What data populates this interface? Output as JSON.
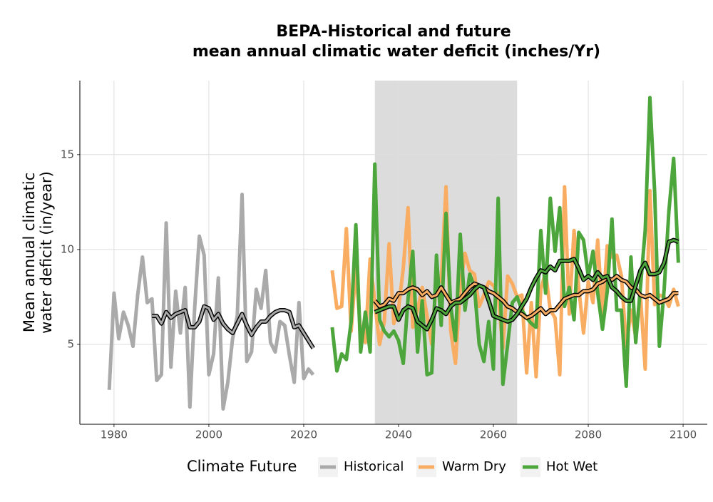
{
  "chart_data": {
    "type": "line",
    "title": [
      "BEPA-Historical and future",
      "mean annual climatic water deficit (inches/Yr)"
    ],
    "y_label": [
      "Mean annual climatic",
      "water deficit (in/year)"
    ],
    "legend_title": "Climate Future",
    "xlim": [
      1972.8,
      2105.1
    ],
    "ylim": [
      0.79,
      18.9
    ],
    "xticks": [
      1980,
      2000,
      2020,
      2040,
      2060,
      2080,
      2100
    ],
    "yticks": [
      5,
      10,
      15
    ],
    "grid": true,
    "highlight_x": [
      2035,
      2065
    ],
    "highlight_color": "#dcdcdc",
    "smooth_outline_color": "#000000",
    "series": [
      {
        "name": "Historical",
        "color": "#aaaaaa",
        "x": [
          1979,
          1980,
          1981,
          1982,
          1983,
          1984,
          1985,
          1986,
          1987,
          1988,
          1989,
          1990,
          1991,
          1992,
          1993,
          1994,
          1995,
          1996,
          1997,
          1998,
          1999,
          2000,
          2001,
          2002,
          2003,
          2004,
          2005,
          2006,
          2007,
          2008,
          2009,
          2010,
          2011,
          2012,
          2013,
          2014,
          2015,
          2016,
          2017,
          2018,
          2019,
          2020,
          2021,
          2022
        ],
        "values": [
          2.6,
          7.7,
          5.3,
          6.7,
          6.0,
          4.9,
          7.6,
          9.6,
          7.2,
          7.4,
          3.1,
          3.4,
          11.4,
          3.8,
          7.8,
          5.6,
          8.0,
          1.7,
          6.9,
          10.7,
          9.7,
          3.4,
          4.5,
          8.5,
          1.6,
          3.0,
          5.3,
          6.5,
          12.9,
          4.1,
          4.6,
          7.9,
          6.9,
          8.9,
          5.1,
          4.6,
          6.2,
          6.0,
          4.4,
          3.0,
          7.2,
          3.2,
          3.7,
          3.4
        ],
        "smooth": [
          null,
          null,
          null,
          null,
          null,
          null,
          null,
          null,
          null,
          6.5,
          6.5,
          6.1,
          6.7,
          6.4,
          6.6,
          6.7,
          6.8,
          5.9,
          5.9,
          6.2,
          7.0,
          6.9,
          6.3,
          6.6,
          6.1,
          5.8,
          5.6,
          6.1,
          6.6,
          6.0,
          5.5,
          5.9,
          6.2,
          6.2,
          6.5,
          6.7,
          6.8,
          6.8,
          6.7,
          5.9,
          6.0,
          5.6,
          5.2,
          4.8
        ]
      },
      {
        "name": "Warm Dry",
        "color": "#f9ad62",
        "x": [
          2026,
          2027,
          2028,
          2029,
          2030,
          2031,
          2032,
          2033,
          2034,
          2035,
          2036,
          2037,
          2038,
          2039,
          2040,
          2041,
          2042,
          2043,
          2044,
          2045,
          2046,
          2047,
          2048,
          2049,
          2050,
          2051,
          2052,
          2053,
          2054,
          2055,
          2056,
          2057,
          2058,
          2059,
          2060,
          2061,
          2062,
          2063,
          2064,
          2065,
          2066,
          2067,
          2068,
          2069,
          2070,
          2071,
          2072,
          2073,
          2074,
          2075,
          2076,
          2077,
          2078,
          2079,
          2080,
          2081,
          2082,
          2083,
          2084,
          2085,
          2086,
          2087,
          2088,
          2089,
          2090,
          2091,
          2092,
          2093,
          2094,
          2095,
          2096,
          2097,
          2098,
          2099
        ],
        "values": [
          8.9,
          6.9,
          7.0,
          11.1,
          5.7,
          9.0,
          5.6,
          5.1,
          9.5,
          7.2,
          5.0,
          6.2,
          10.3,
          6.1,
          6.9,
          9.0,
          12.2,
          5.9,
          6.8,
          8.0,
          6.5,
          5.0,
          8.5,
          8.3,
          13.3,
          5.7,
          4.0,
          8.0,
          9.8,
          8.9,
          8.7,
          7.0,
          7.6,
          8.3,
          8.1,
          7.6,
          4.8,
          8.6,
          8.2,
          7.5,
          7.6,
          3.5,
          7.2,
          3.3,
          7.9,
          8.8,
          6.8,
          6.4,
          3.4,
          13.3,
          6.6,
          11.0,
          8.0,
          5.6,
          8.3,
          7.2,
          10.5,
          6.6,
          10.2,
          9.6,
          9.7,
          8.6,
          4.9,
          6.8,
          5.4,
          7.6,
          3.7,
          13.1,
          7.1,
          7.6,
          7.5,
          7.0,
          7.9,
          7.0
        ],
        "smooth": [
          null,
          null,
          null,
          null,
          null,
          null,
          null,
          null,
          null,
          7.3,
          7.0,
          7.1,
          7.4,
          7.3,
          7.7,
          7.7,
          7.9,
          8.0,
          7.9,
          7.6,
          7.8,
          7.5,
          7.6,
          8.0,
          7.6,
          7.2,
          7.3,
          7.4,
          7.7,
          8.0,
          8.2,
          8.1,
          8.0,
          7.8,
          7.7,
          7.5,
          7.3,
          7.0,
          6.9,
          6.7,
          6.6,
          6.4,
          6.5,
          6.7,
          6.9,
          6.6,
          6.8,
          6.8,
          7.1,
          7.4,
          7.5,
          7.6,
          7.6,
          7.8,
          7.8,
          7.9,
          8.2,
          8.3,
          8.5,
          8.4,
          8.6,
          8.4,
          8.3,
          8.0,
          7.9,
          7.6,
          7.5,
          7.6,
          7.4,
          7.2,
          7.3,
          7.4,
          7.7,
          7.7
        ]
      },
      {
        "name": "Hot Wet",
        "color": "#4da63c",
        "x": [
          2026,
          2027,
          2028,
          2029,
          2030,
          2031,
          2032,
          2033,
          2034,
          2035,
          2036,
          2037,
          2038,
          2039,
          2040,
          2041,
          2042,
          2043,
          2044,
          2045,
          2046,
          2047,
          2048,
          2049,
          2050,
          2051,
          2052,
          2053,
          2054,
          2055,
          2056,
          2057,
          2058,
          2059,
          2060,
          2061,
          2062,
          2063,
          2064,
          2065,
          2066,
          2067,
          2068,
          2069,
          2070,
          2071,
          2072,
          2073,
          2074,
          2075,
          2076,
          2077,
          2078,
          2079,
          2080,
          2081,
          2082,
          2083,
          2084,
          2085,
          2086,
          2087,
          2088,
          2089,
          2090,
          2091,
          2092,
          2093,
          2094,
          2095,
          2096,
          2097,
          2098,
          2099
        ],
        "values": [
          5.9,
          3.6,
          4.5,
          4.2,
          6.2,
          11.3,
          4.6,
          6.7,
          4.6,
          14.5,
          6.3,
          5.7,
          5.4,
          5.7,
          5.2,
          4.0,
          7.4,
          9.9,
          4.6,
          7.3,
          3.4,
          3.5,
          9.7,
          6.0,
          11.9,
          7.0,
          5.2,
          10.8,
          6.8,
          8.7,
          8.0,
          5.0,
          4.1,
          6.2,
          3.7,
          12.7,
          2.9,
          5.0,
          7.2,
          7.5,
          6.8,
          6.4,
          6.1,
          5.9,
          11.0,
          7.7,
          12.7,
          9.9,
          12.2,
          7.0,
          8.0,
          6.3,
          10.9,
          10.5,
          8.6,
          9.9,
          7.7,
          5.8,
          7.8,
          11.6,
          6.8,
          6.8,
          2.8,
          9.6,
          5.1,
          8.0,
          11.0,
          18.0,
          13.0,
          4.9,
          7.9,
          12.0,
          14.8,
          9.3
        ],
        "smooth": [
          null,
          null,
          null,
          null,
          null,
          null,
          null,
          null,
          null,
          6.7,
          6.8,
          6.9,
          7.0,
          7.0,
          6.3,
          6.8,
          7.0,
          6.9,
          6.2,
          6.0,
          5.8,
          6.3,
          6.9,
          6.8,
          6.6,
          7.0,
          7.2,
          7.2,
          7.4,
          7.6,
          7.9,
          8.1,
          8.0,
          7.3,
          6.5,
          6.4,
          6.3,
          6.2,
          6.3,
          6.6,
          7.0,
          7.4,
          8.0,
          8.5,
          8.9,
          8.8,
          9.1,
          8.9,
          9.4,
          9.4,
          9.4,
          9.5,
          9.0,
          8.4,
          8.6,
          8.4,
          8.8,
          8.5,
          8.6,
          8.0,
          7.8,
          7.5,
          7.3,
          7.3,
          8.1,
          8.9,
          9.3,
          8.7,
          8.7,
          8.8,
          9.3,
          10.4,
          10.5,
          10.4
        ]
      }
    ]
  }
}
